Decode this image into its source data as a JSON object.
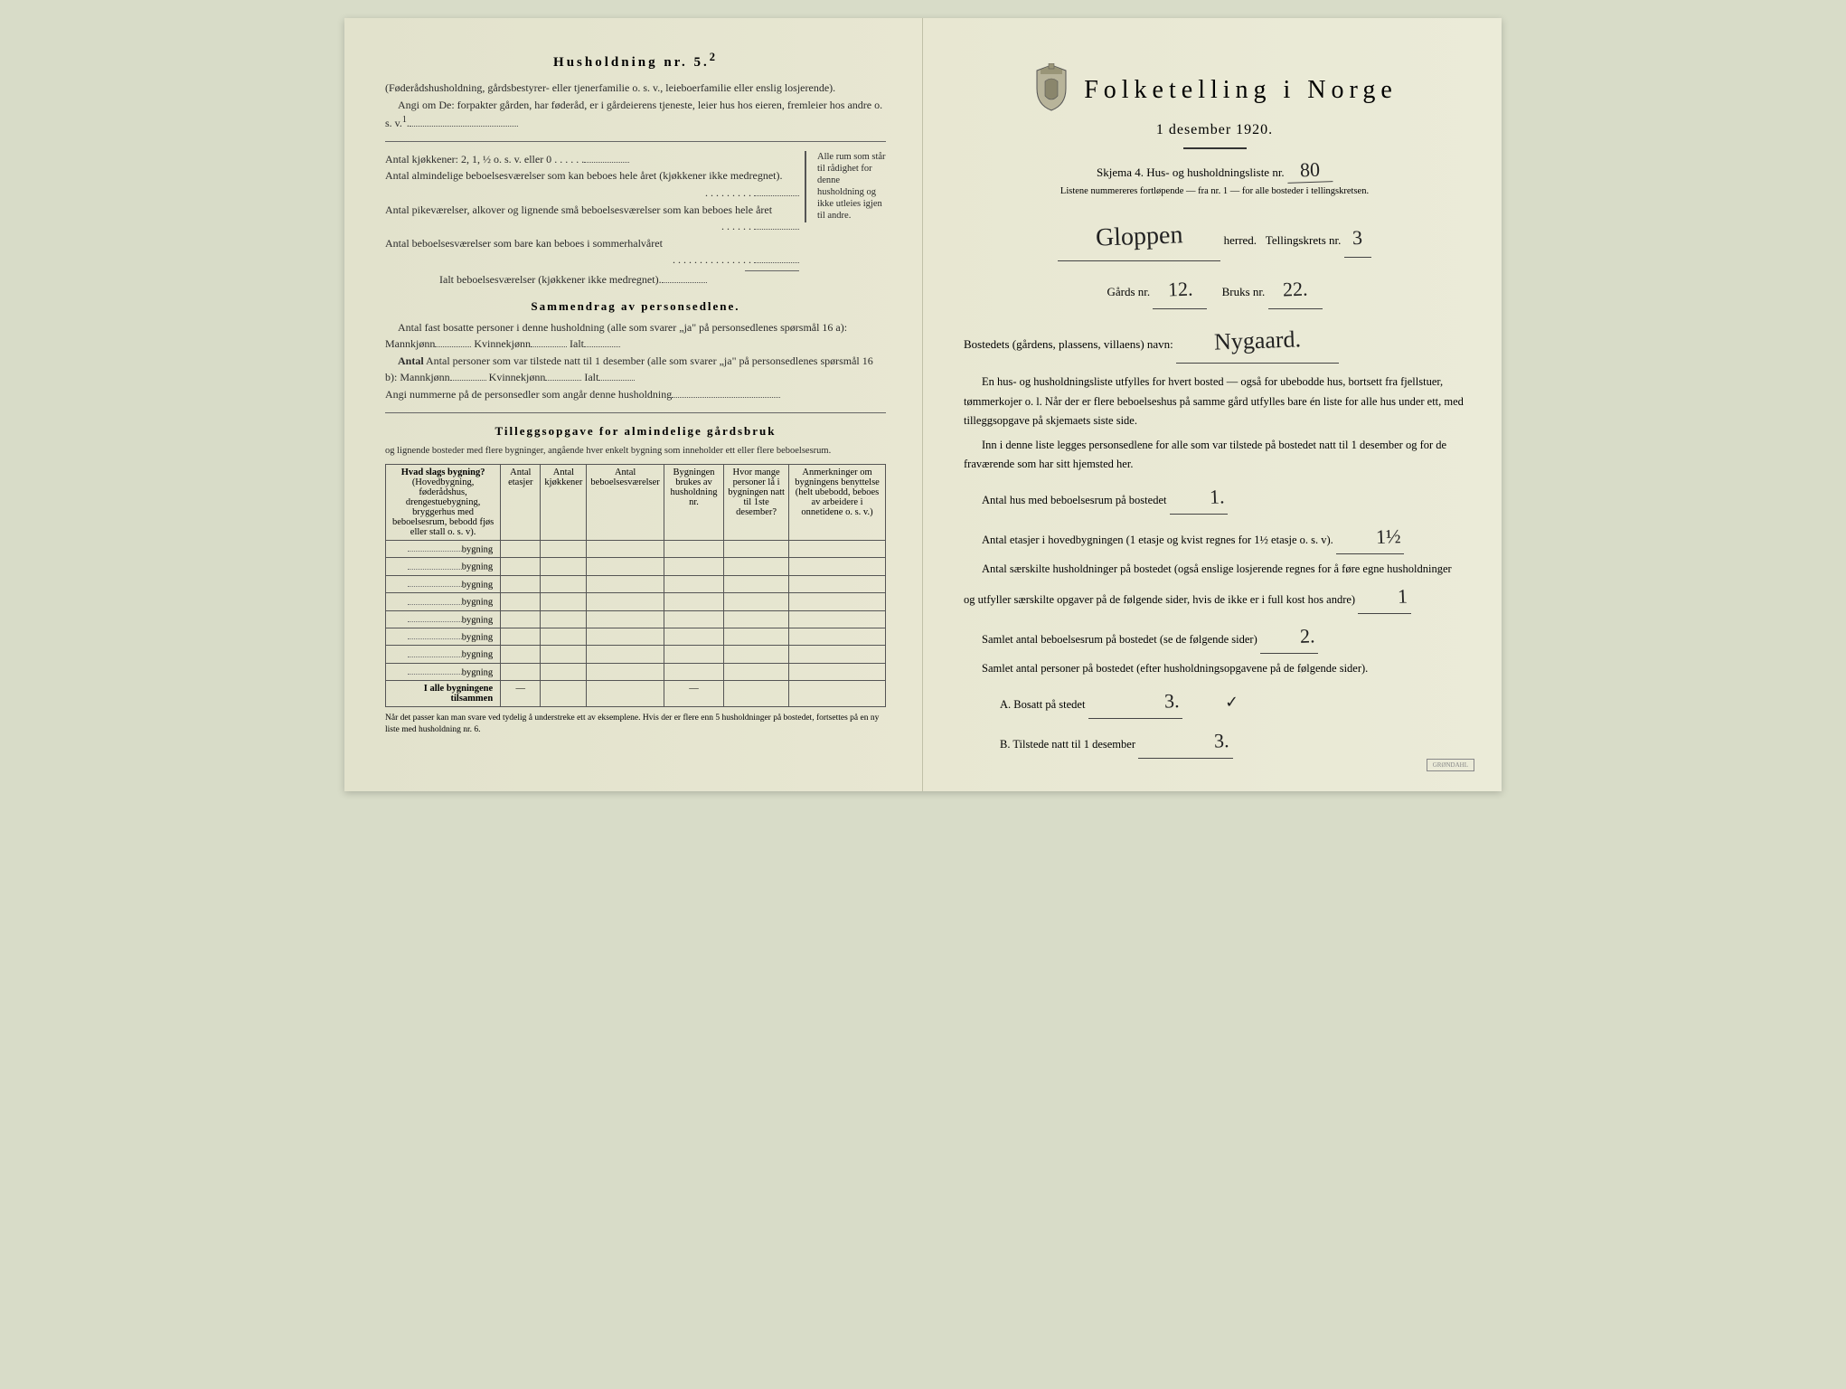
{
  "colors": {
    "paper": "#e8e8d4",
    "ink": "#2a2a2a",
    "rule": "#555555",
    "handwriting": "#222222"
  },
  "left": {
    "h5_title": "Husholdning nr. 5.",
    "h5_sup": "2",
    "h5_paren": "(Føderådshusholdning, gårdsbestyrer- eller tjenerfamilie o. s. v., leieboerfamilie eller enslig losjerende).",
    "h5_angi": "Angi om De: forpakter gården, har føderåd, er i gårdeierens tjeneste, leier hus hos eieren, fremleier hos andre o. s. v.",
    "kjokkener_label": "Antal kjøkkener: 2, 1, ½ o. s. v. eller 0",
    "rooms": [
      "Antal almindelige beboelsesværelser som kan beboes hele året (kjøkkener ikke medregnet).",
      "Antal pikeværelser, alkover og lignende små beboelsesværelser som kan beboes hele året",
      "Antal beboelsesværelser som bare kan beboes i sommerhalvåret"
    ],
    "ialt_label": "Ialt beboelsesværelser (kjøkkener ikke medregnet).",
    "brace_note": "Alle rum som står til rådighet for denne husholdning og ikke utleies igjen til andre.",
    "sammendrag_title": "Sammendrag av personsedlene.",
    "samm_line1": "Antal fast bosatte personer i denne husholdning (alle som svarer „ja\" på personsedlenes spørsmål 16 a): Mannkjønn",
    "kvinne": "Kvinnekjønn",
    "ialt": "Ialt",
    "samm_line2": "Antal personer som var tilstede natt til 1 desember (alle som svarer „ja\" på personsedlenes spørsmål 16 b): Mannkjønn",
    "angi_num": "Angi nummerne på de personsedler som angår denne husholdning",
    "tillegg_title": "Tilleggsopgave for almindelige gårdsbruk",
    "tillegg_sub": "og lignende bosteder med flere bygninger, angående hver enkelt bygning som inneholder ett eller flere beboelsesrum.",
    "table": {
      "col1_head": "Hvad slags bygning?",
      "col1_sub": "(Hovedbygning, føderådshus, drengestuebygning, bryggerhus med beboelsesrum, bebodd fjøs eller stall o. s. v).",
      "col2": "Antal etasjer",
      "col3": "Antal kjøkkener",
      "col4": "Antal beboelsesværelser",
      "col5": "Bygningen brukes av husholdning nr.",
      "col6": "Hvor mange personer lå i bygningen natt til 1ste desember?",
      "col7": "Anmerkninger om bygningens benyttelse (helt ubebodd, beboes av arbeidere i onnetidene o. s. v.)",
      "row_label": "bygning",
      "rows": 8,
      "total_label": "I alle bygningene tilsammen"
    },
    "footnote": "Når det passer kan man svare ved tydelig å understreke ett av eksemplene.\nHvis der er flere enn 5 husholdninger på bostedet, fortsettes på en ny liste med husholdning nr. 6."
  },
  "right": {
    "title": "Folketelling i Norge",
    "date": "1 desember 1920.",
    "skjema_prefix": "Skjema 4.  Hus- og husholdningsliste nr.",
    "liste_nr": "80",
    "listene_note": "Listene nummereres fortløpende — fra nr. 1 — for alle bosteder i tellingskretsen.",
    "herred_label": "herred.",
    "herred_value": "Gloppen",
    "krets_label": "Tellingskrets nr.",
    "krets_value": "3",
    "gards_label": "Gårds nr.",
    "gards_value": "12.",
    "bruks_label": "Bruks nr.",
    "bruks_value": "22.",
    "bosted_label": "Bostedets (gårdens, plassens, villaens) navn:",
    "bosted_value": "Nygaard.",
    "para1": "En hus- og husholdningsliste utfylles for hvert bosted — også for ubebodde hus, bortsett fra fjellstuer, tømmerkojer o. l. Når der er flere beboelseshus på samme gård utfylles bare én liste for alle hus under ett, med tilleggsopgave på skjemaets siste side.",
    "para2": "Inn i denne liste legges personsedlene for alle som var tilstede på bostedet natt til 1 desember og for de fraværende som har sitt hjemsted her.",
    "q_hus": "Antal hus med beboelsesrum på bostedet",
    "q_hus_val": "1.",
    "q_etasjer_a": "Antal etasjer i hovedbygningen (1 etasje og kvist regnes for 1½ etasje o. s. v).",
    "q_etasjer_val": "1½",
    "q_hush": "Antal særskilte husholdninger på bostedet (også enslige losjerende regnes for å føre egne husholdninger og utfyller særskilte opgaver på de følgende sider, hvis de ikke er i full kost hos andre)",
    "q_hush_val": "1",
    "q_samlet_rum": "Samlet antal beboelsesrum på bostedet (se de følgende sider)",
    "q_samlet_rum_val": "2.",
    "q_samlet_pers": "Samlet antal personer på bostedet (efter husholdningsopgavene på de følgende sider).",
    "q_a": "A.  Bosatt på stedet",
    "q_a_val": "3.",
    "q_b": "B.  Tilstede natt til 1 desember",
    "q_b_val": "3."
  }
}
